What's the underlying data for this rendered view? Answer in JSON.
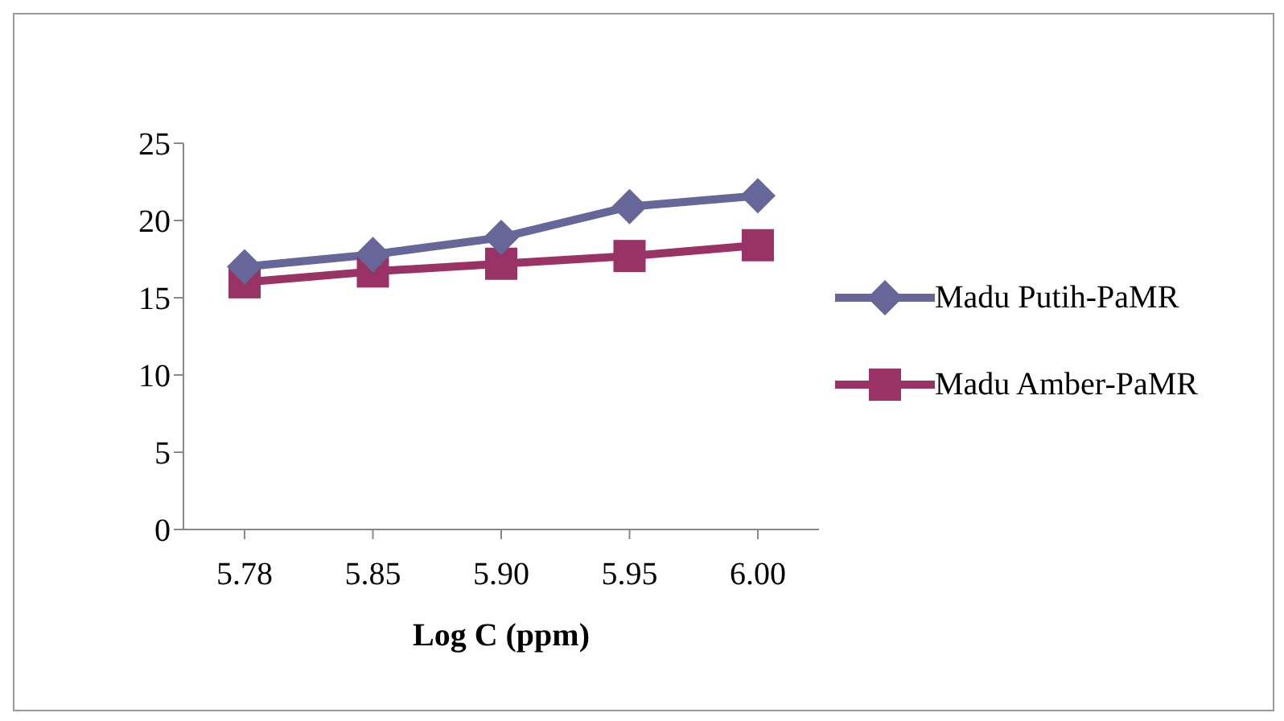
{
  "chart_data": {
    "type": "line",
    "xlabel": "Log C (ppm)",
    "categories": [
      "5.78",
      "5.85",
      "5.90",
      "5.95",
      "6.00"
    ],
    "series": [
      {
        "name": "Madu Putih-PaMR",
        "color": "#666699",
        "marker": "diamond",
        "values": [
          17.0,
          17.8,
          18.9,
          20.9,
          21.6
        ]
      },
      {
        "name": "Madu Amber-PaMR",
        "color": "#993366",
        "marker": "square",
        "values": [
          16.0,
          16.7,
          17.2,
          17.7,
          18.4
        ]
      }
    ],
    "ylim": [
      0,
      25
    ],
    "yticks": [
      0,
      5,
      10,
      15,
      20,
      25
    ],
    "grid": false,
    "legend": "right"
  }
}
